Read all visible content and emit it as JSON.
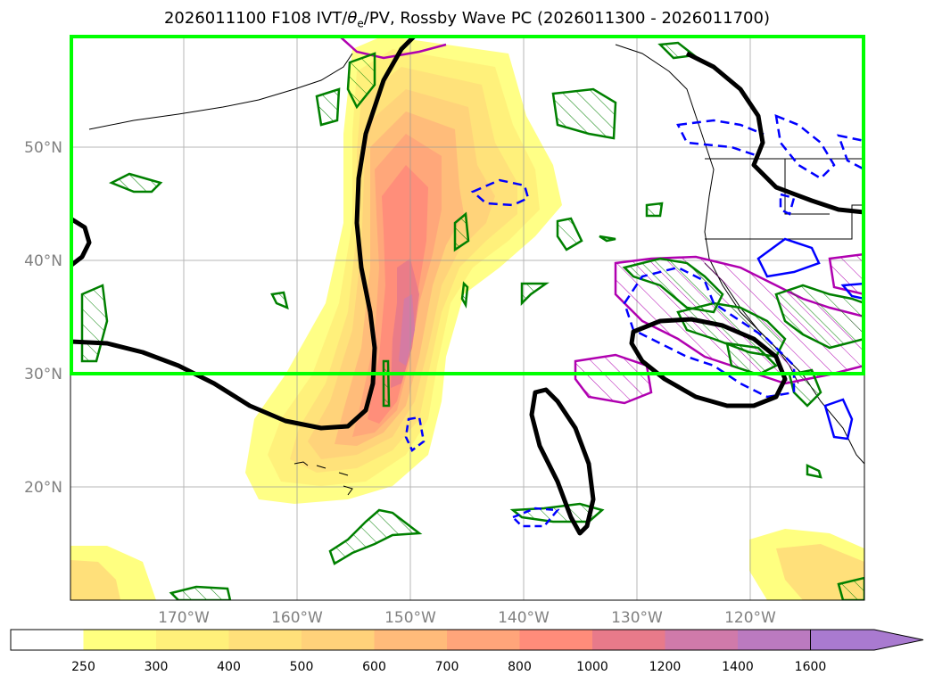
{
  "title": {
    "prefix": "2026011100 F108 IVT/",
    "theta": "θ",
    "sub": "e",
    "suffix": "/PV, Rossby Wave PC (2026011300 - 2026011700)"
  },
  "map": {
    "lat_labels": [
      "50°N",
      "40°N",
      "30°N",
      "20°N"
    ],
    "lon_labels": [
      "170°W",
      "160°W",
      "150°W",
      "140°W",
      "130°W",
      "120°W"
    ],
    "box_color": "#00ff00",
    "contour_colors": {
      "theta_e": "#000000",
      "pv_positive": "#008000",
      "pv_negative": "#0000ff",
      "magenta": "#b000b0"
    }
  },
  "colorbar": {
    "labels": [
      "250",
      "300",
      "400",
      "500",
      "600",
      "700",
      "800",
      "1000",
      "1200",
      "1400",
      "1600"
    ],
    "colors": [
      "#ffffff",
      "#ffff80",
      "#fff07a",
      "#ffe07a",
      "#ffd27a",
      "#ffbb7a",
      "#ffa57a",
      "#ff8c7a",
      "#e87a8a",
      "#d07aaa",
      "#bb7ac0",
      "#a97ad0"
    ]
  }
}
